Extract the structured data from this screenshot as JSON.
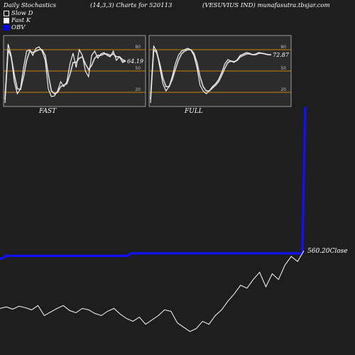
{
  "header": {
    "left": "Daily Stochastics",
    "middle": "(14,3,3) Charts for 520113",
    "right": "(VESUVIUS IND) munafasutra.tbsjar.com"
  },
  "legend": [
    {
      "label": "Slow  D",
      "color": "#ffffff"
    },
    {
      "label": "Fast K",
      "color": "#ffffff"
    },
    {
      "label": "OBV",
      "color": "#0000ff"
    }
  ],
  "colors": {
    "background": "#1e1e1e",
    "panel": "#2c2c2c",
    "level_line": "#c8820a",
    "obv": "#1010ff",
    "price": "#ffffff"
  },
  "chart_data": [
    {
      "type": "line",
      "panel": "FAST",
      "ylim": [
        0,
        100
      ],
      "yticks": [
        80,
        50,
        20
      ],
      "levels": [
        80,
        50,
        20
      ],
      "last_value": "64.19",
      "series": [
        {
          "name": "",
          "values": [
            5,
            88,
            72,
            35,
            18,
            25,
            55,
            78,
            80,
            72,
            82,
            84,
            78,
            65,
            25,
            14,
            15,
            22,
            35,
            28,
            35,
            60,
            75,
            55,
            80,
            72,
            50,
            42,
            72,
            78,
            68,
            74,
            76,
            72,
            70,
            78,
            65,
            70,
            62,
            64
          ]
        },
        {
          "name": "",
          "values": [
            10,
            80,
            70,
            45,
            25,
            24,
            42,
            65,
            78,
            76,
            78,
            80,
            80,
            72,
            45,
            22,
            18,
            20,
            28,
            30,
            32,
            45,
            62,
            62,
            68,
            70,
            60,
            52,
            58,
            68,
            72,
            72,
            74,
            74,
            72,
            74,
            70,
            70,
            66,
            64
          ]
        }
      ]
    },
    {
      "type": "line",
      "panel": "FULL",
      "ylim": [
        0,
        100
      ],
      "yticks": [
        80,
        50,
        20
      ],
      "levels": [
        80,
        50,
        20
      ],
      "last_value": "72.87",
      "series": [
        {
          "name": "",
          "values": [
            5,
            85,
            78,
            55,
            32,
            22,
            28,
            42,
            60,
            72,
            78,
            80,
            82,
            80,
            72,
            55,
            30,
            22,
            18,
            22,
            28,
            32,
            38,
            48,
            60,
            66,
            64,
            62,
            66,
            72,
            74,
            76,
            75,
            73,
            74,
            76,
            75,
            74,
            73,
            73
          ]
        },
        {
          "name": "",
          "values": [
            10,
            80,
            76,
            60,
            40,
            28,
            28,
            38,
            52,
            65,
            74,
            78,
            80,
            80,
            75,
            62,
            42,
            28,
            22,
            22,
            26,
            30,
            35,
            44,
            54,
            62,
            64,
            63,
            65,
            70,
            72,
            74,
            74,
            73,
            73,
            75,
            75,
            74,
            73,
            73
          ]
        }
      ]
    },
    {
      "type": "line",
      "panel": "OBV-Price",
      "close_label": "560.20Close",
      "series": [
        {
          "name": "OBV",
          "values": [
            0,
            0,
            1,
            1,
            1,
            1,
            1,
            1,
            1,
            1,
            1,
            1,
            1,
            1,
            1,
            1,
            1,
            1,
            1,
            1,
            1,
            1,
            1,
            1,
            1,
            1,
            1,
            1,
            1,
            1,
            1,
            1,
            1,
            1,
            1,
            1,
            1,
            1,
            1,
            1,
            1,
            1,
            1,
            1,
            1,
            2,
            2,
            2,
            2,
            2,
            2,
            2,
            2,
            2,
            2,
            2,
            2,
            2,
            2,
            2,
            2,
            2,
            2,
            2,
            2,
            2,
            2,
            2,
            2,
            2,
            2,
            2,
            2,
            2,
            2,
            2,
            2,
            2,
            2,
            2,
            2,
            2,
            2,
            2,
            2,
            2,
            2,
            2,
            2,
            2,
            2,
            2,
            2,
            2,
            2,
            2,
            2,
            2,
            2,
            2,
            2,
            2,
            2,
            2,
            2,
            60
          ]
        },
        {
          "name": "Price",
          "values": [
            480,
            482,
            479,
            483,
            481,
            478,
            484,
            470,
            475,
            480,
            484,
            477,
            474,
            480,
            478,
            473,
            470,
            476,
            480,
            472,
            466,
            462,
            468,
            458,
            464,
            470,
            478,
            476,
            460,
            454,
            448,
            452,
            462,
            458,
            470,
            478,
            490,
            500,
            512,
            508,
            520,
            530,
            510,
            528,
            520,
            540,
            552,
            545,
            560
          ]
        }
      ]
    }
  ]
}
